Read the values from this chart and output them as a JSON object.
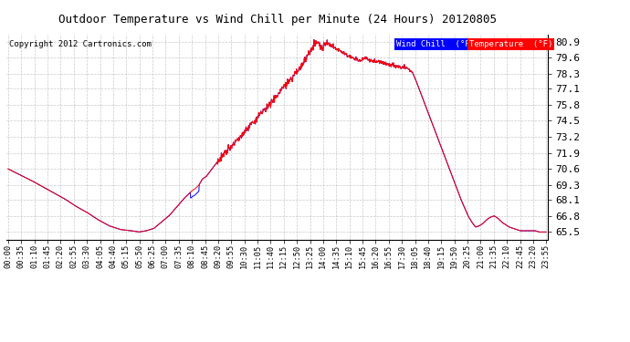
{
  "title": "Outdoor Temperature vs Wind Chill per Minute (24 Hours) 20120805",
  "copyright": "Copyright 2012 Cartronics.com",
  "background_color": "#ffffff",
  "plot_bg_color": "#ffffff",
  "grid_color": "#bbbbbb",
  "y_ticks": [
    65.5,
    66.8,
    68.1,
    69.3,
    70.6,
    71.9,
    73.2,
    74.5,
    75.8,
    77.1,
    78.3,
    79.6,
    80.9
  ],
  "ylim": [
    64.9,
    81.5
  ],
  "temp_color": "#ff0000",
  "wind_color": "#0000ff",
  "x_tick_labels": [
    "00:00",
    "00:35",
    "01:10",
    "01:45",
    "02:20",
    "02:55",
    "03:30",
    "04:05",
    "04:40",
    "05:15",
    "05:50",
    "06:25",
    "07:00",
    "07:35",
    "08:10",
    "08:45",
    "09:20",
    "09:55",
    "10:30",
    "11:05",
    "11:40",
    "12:15",
    "12:50",
    "13:25",
    "14:00",
    "14:35",
    "15:10",
    "15:45",
    "16:20",
    "16:55",
    "17:30",
    "18:05",
    "18:40",
    "19:15",
    "19:50",
    "20:25",
    "21:00",
    "21:35",
    "22:10",
    "22:45",
    "23:20",
    "23:55"
  ]
}
